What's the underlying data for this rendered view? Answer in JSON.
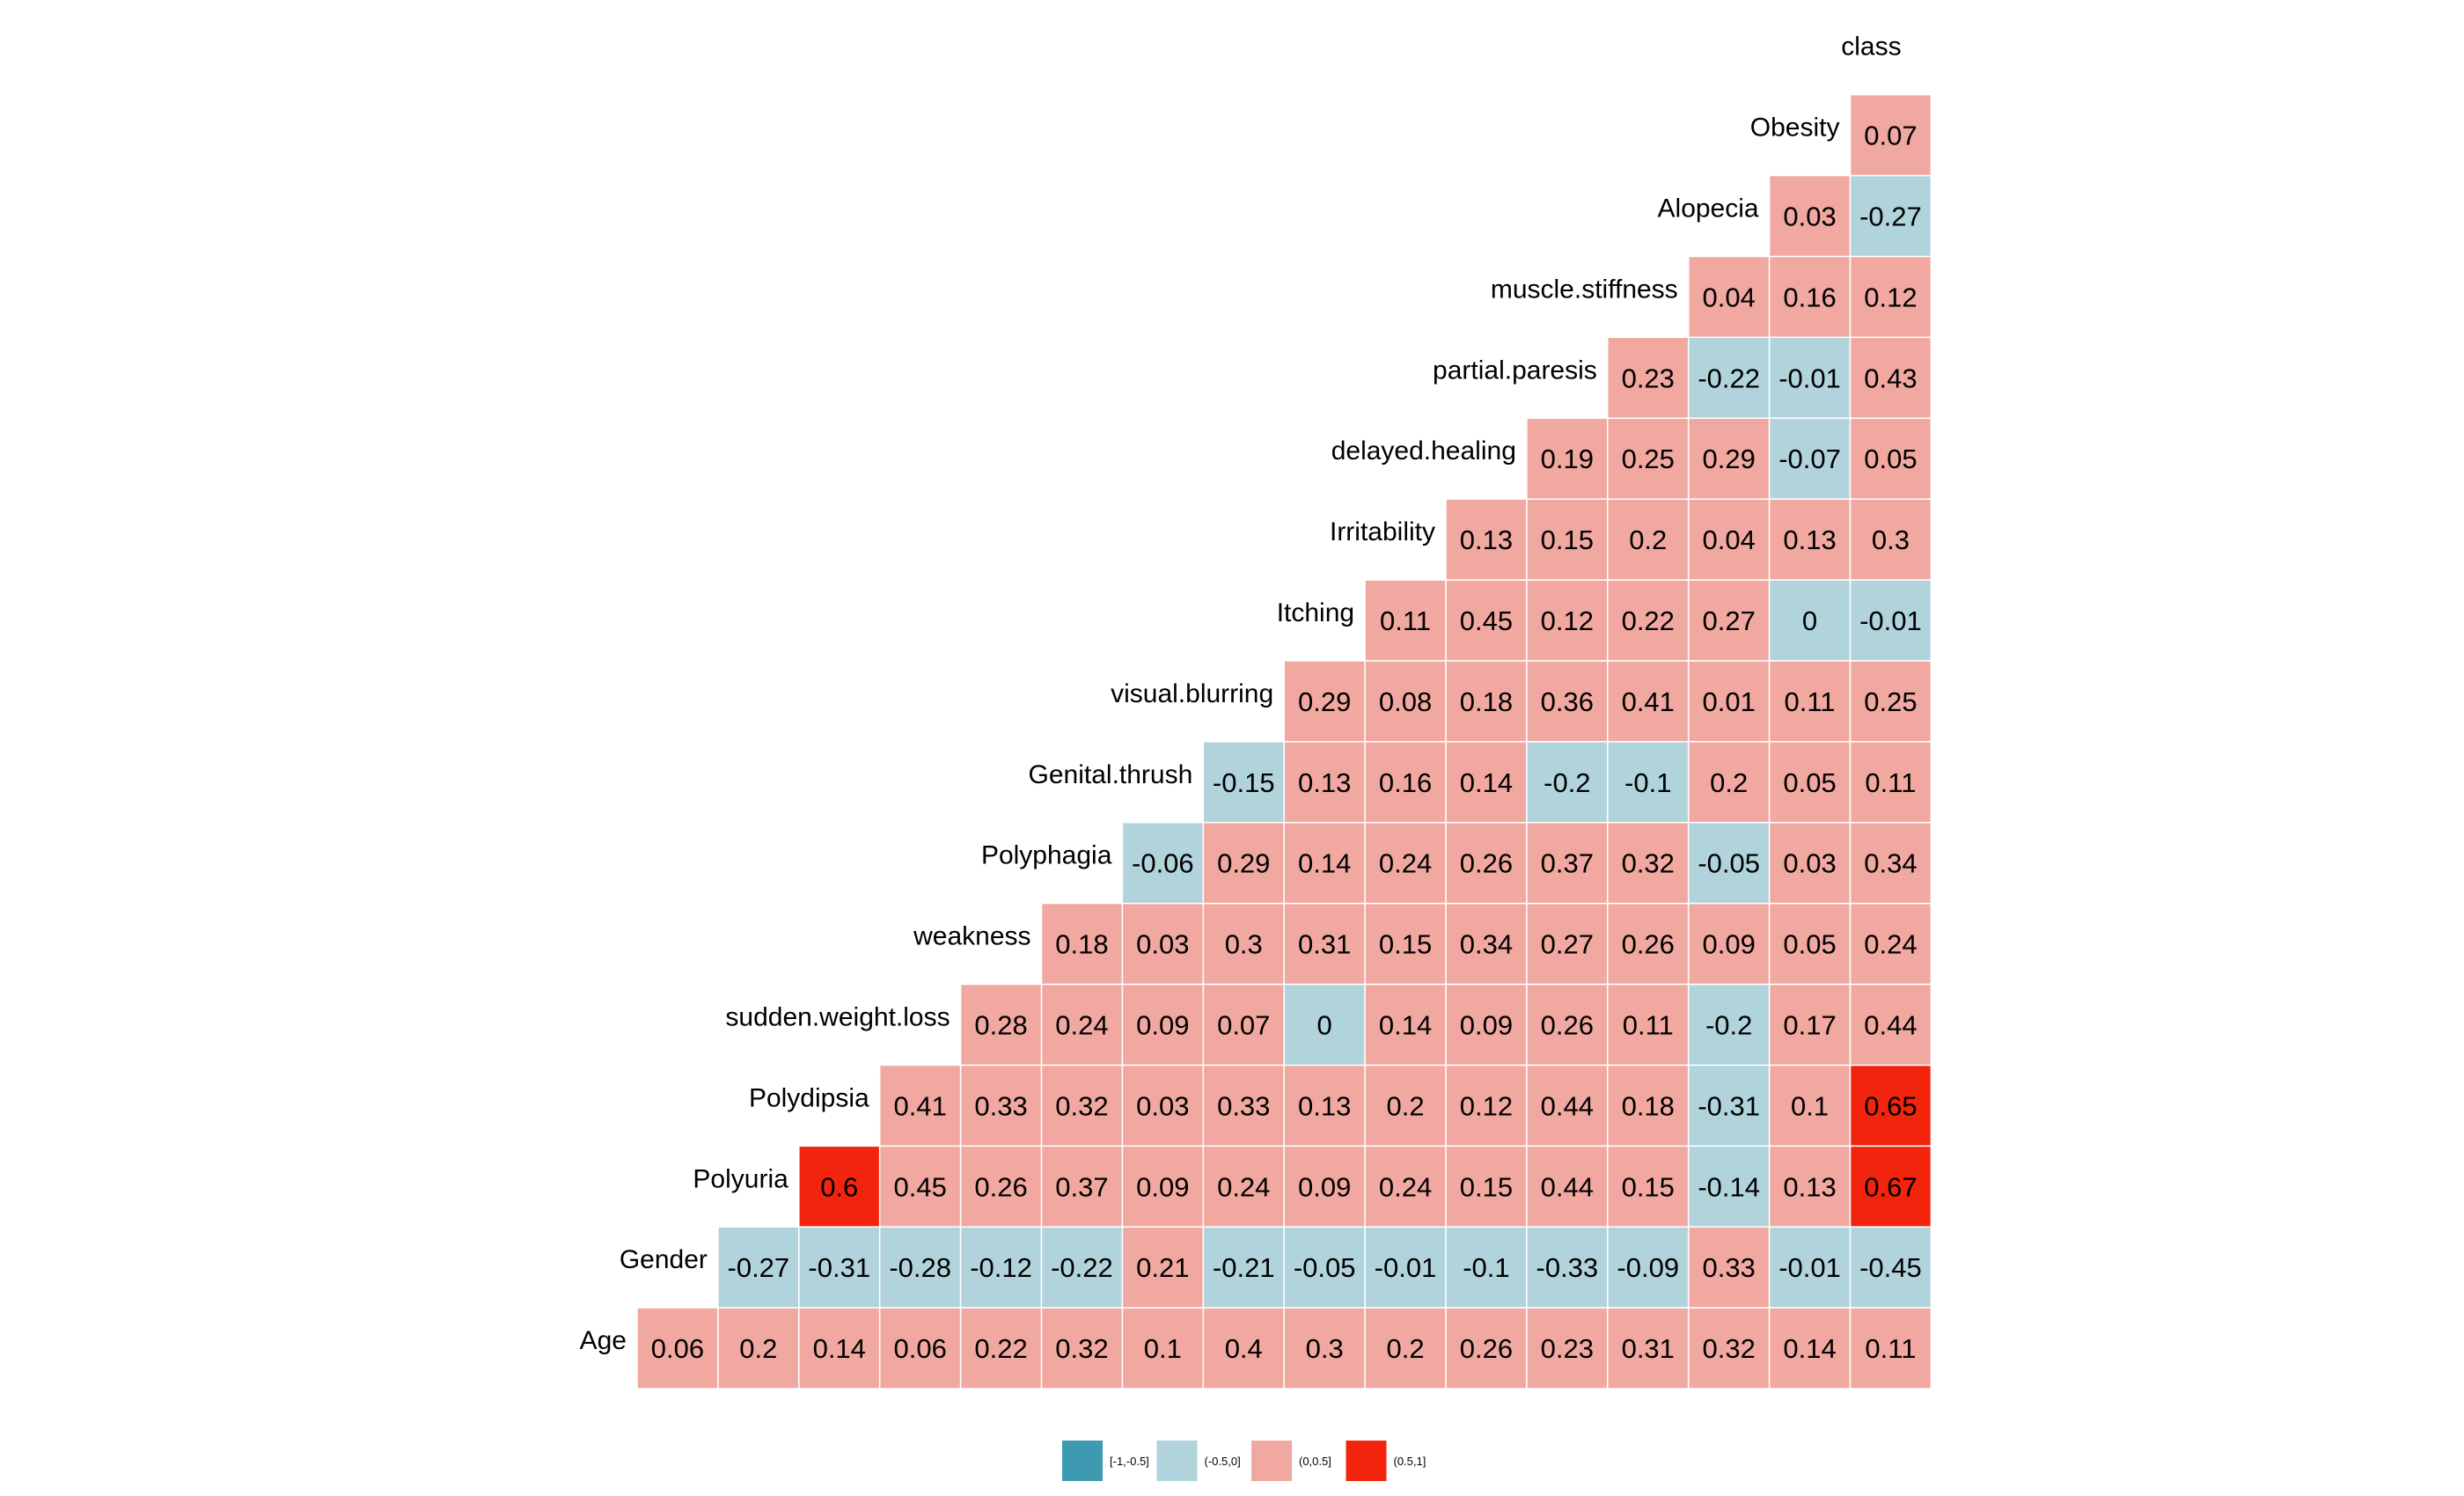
{
  "chart_data": {
    "type": "heatmap",
    "variables": [
      "Age",
      "Gender",
      "Polyuria",
      "Polydipsia",
      "sudden.weight.loss",
      "weakness",
      "Polyphagia",
      "Genital.thrush",
      "visual.blurring",
      "Itching",
      "Irritability",
      "delayed.healing",
      "partial.paresis",
      "muscle.stiffness",
      "Alopecia",
      "Obesity",
      "class"
    ],
    "rows": [
      {
        "label": "Age",
        "values": [
          0.06,
          0.2,
          0.14,
          0.06,
          0.22,
          0.32,
          0.1,
          0.4,
          0.3,
          0.2,
          0.26,
          0.23,
          0.31,
          0.32,
          0.14,
          0.11
        ]
      },
      {
        "label": "Gender",
        "values": [
          -0.27,
          -0.31,
          -0.28,
          -0.12,
          -0.22,
          0.21,
          -0.21,
          -0.05,
          -0.01,
          -0.1,
          -0.33,
          -0.09,
          0.33,
          -0.01,
          -0.45
        ]
      },
      {
        "label": "Polyuria",
        "values": [
          0.6,
          0.45,
          0.26,
          0.37,
          0.09,
          0.24,
          0.09,
          0.24,
          0.15,
          0.44,
          0.15,
          -0.14,
          0.13,
          0.67
        ]
      },
      {
        "label": "Polydipsia",
        "values": [
          0.41,
          0.33,
          0.32,
          0.03,
          0.33,
          0.13,
          0.2,
          0.12,
          0.44,
          0.18,
          -0.31,
          0.1,
          0.65
        ]
      },
      {
        "label": "sudden.weight.loss",
        "values": [
          0.28,
          0.24,
          0.09,
          0.07,
          0,
          0.14,
          0.09,
          0.26,
          0.11,
          -0.2,
          0.17,
          0.44
        ]
      },
      {
        "label": "weakness",
        "values": [
          0.18,
          0.03,
          0.3,
          0.31,
          0.15,
          0.34,
          0.27,
          0.26,
          0.09,
          0.05,
          0.24
        ]
      },
      {
        "label": "Polyphagia",
        "values": [
          -0.06,
          0.29,
          0.14,
          0.24,
          0.26,
          0.37,
          0.32,
          -0.05,
          0.03,
          0.34
        ]
      },
      {
        "label": "Genital.thrush",
        "values": [
          -0.15,
          0.13,
          0.16,
          0.14,
          -0.2,
          -0.1,
          0.2,
          0.05,
          0.11
        ]
      },
      {
        "label": "visual.blurring",
        "values": [
          0.29,
          0.08,
          0.18,
          0.36,
          0.41,
          0.01,
          0.11,
          0.25
        ]
      },
      {
        "label": "Itching",
        "values": [
          0.11,
          0.45,
          0.12,
          0.22,
          0.27,
          0,
          -0.01
        ]
      },
      {
        "label": "Irritability",
        "values": [
          0.13,
          0.15,
          0.2,
          0.04,
          0.13,
          0.3
        ]
      },
      {
        "label": "delayed.healing",
        "values": [
          0.19,
          0.25,
          0.29,
          -0.07,
          0.05
        ]
      },
      {
        "label": "partial.paresis",
        "values": [
          0.23,
          -0.22,
          -0.01,
          0.43
        ]
      },
      {
        "label": "muscle.stiffness",
        "values": [
          0.04,
          0.16,
          0.12
        ]
      },
      {
        "label": "Alopecia",
        "values": [
          0.03,
          -0.27
        ]
      },
      {
        "label": "Obesity",
        "values": [
          0.07
        ]
      }
    ],
    "top_label": "class",
    "legend": {
      "position": "bottom",
      "bins": [
        {
          "label": "[-1,-0.5]",
          "color": "#3d9ab0"
        },
        {
          "label": "(-0.5,0]",
          "color": "#b1d3dc"
        },
        {
          "label": "(0,0.5]",
          "color": "#f1a8a0"
        },
        {
          "label": "(0.5,1]",
          "color": "#f3240d"
        }
      ]
    }
  }
}
